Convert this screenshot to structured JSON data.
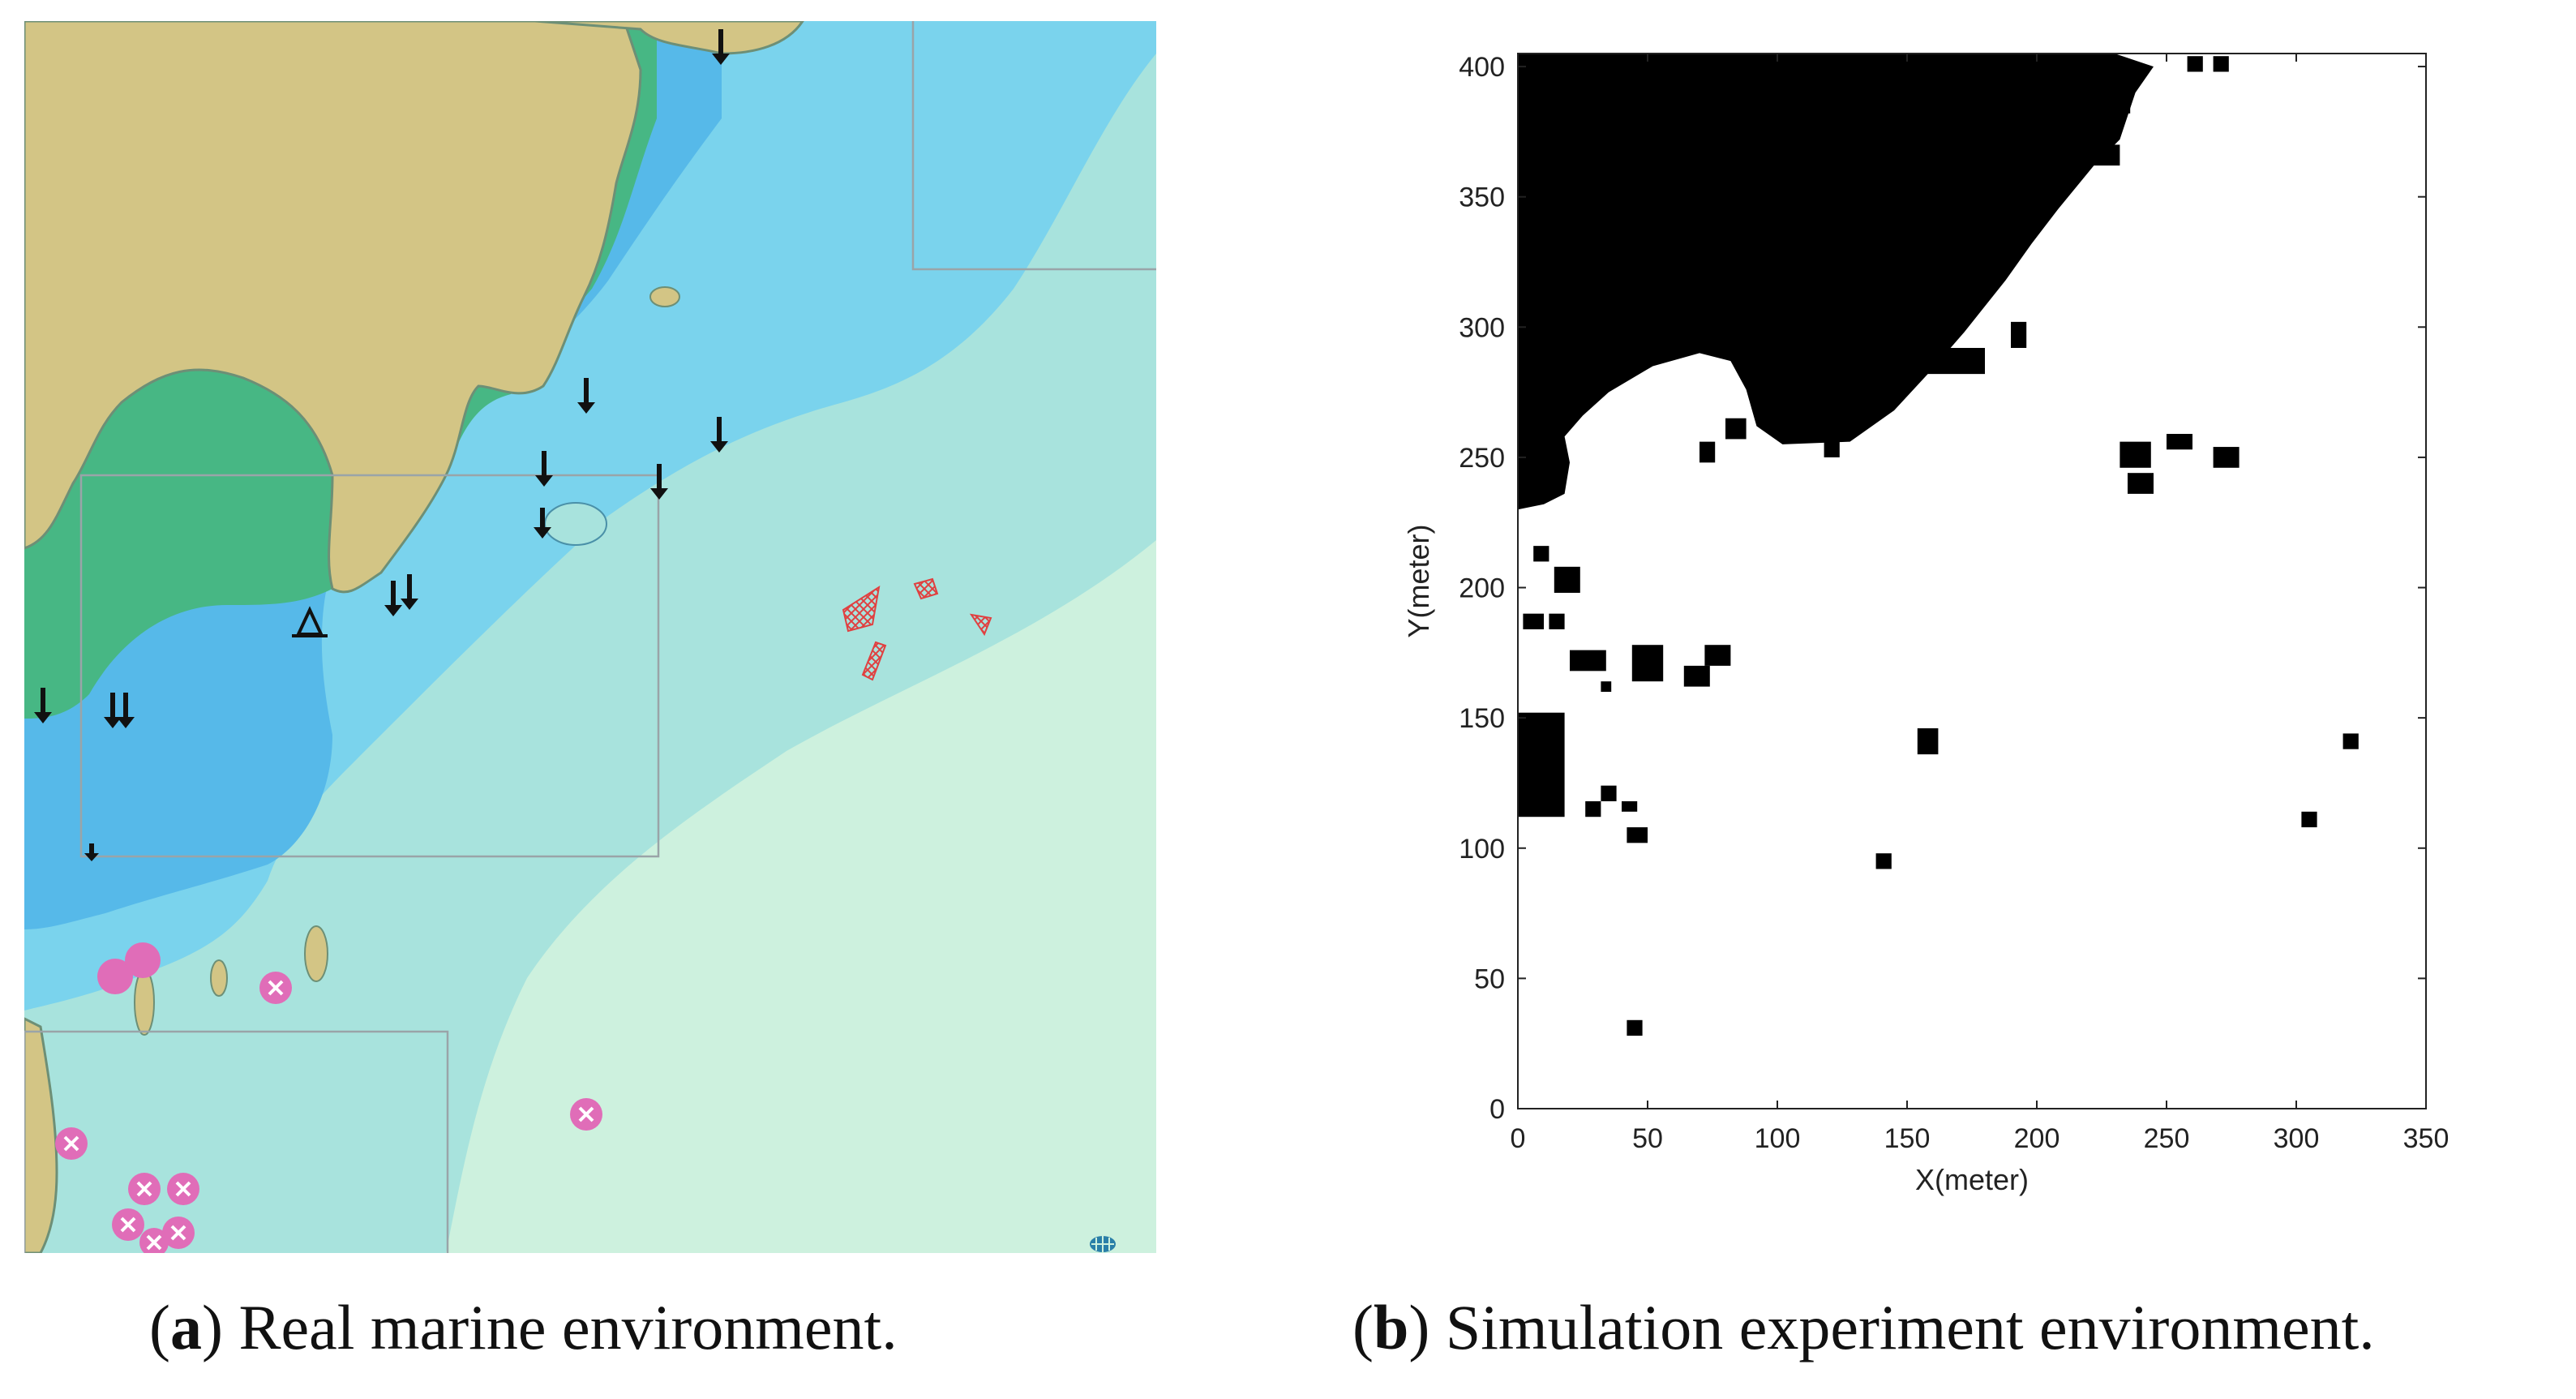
{
  "panel_a": {
    "caption_letter": "a",
    "caption_text": "Real marine environment.",
    "colors": {
      "land": "#d3c585",
      "intertidal": "#47b784",
      "shallow": "#56b9e9",
      "medium": "#7ad3ed",
      "deep": "#a8e3dd",
      "deepest": "#cdf1de",
      "restricted": "#e06db8",
      "fishing": "#e04040"
    },
    "icons": [
      "anchor-icon",
      "wreck-icon",
      "restricted-area-icon",
      "fishing-area-icon",
      "beacon-icon"
    ]
  },
  "panel_b": {
    "caption_letter": "b",
    "caption_text": "Simulation experiment environment.",
    "chart_data": {
      "type": "map",
      "title": "",
      "xlabel": "X(meter)",
      "ylabel": "Y(meter)",
      "xlim": [
        0,
        350
      ],
      "ylim": [
        0,
        405
      ],
      "xticks": [
        0,
        50,
        100,
        150,
        200,
        250,
        300,
        350
      ],
      "yticks": [
        0,
        50,
        100,
        150,
        200,
        250,
        300,
        350,
        400
      ],
      "grid": false,
      "obstacle_color": "#000000",
      "background_color": "#ffffff",
      "mainland_boundary": [
        [
          0,
          405
        ],
        [
          230,
          405
        ],
        [
          245,
          400
        ],
        [
          238,
          390
        ],
        [
          232,
          372
        ],
        [
          222,
          362
        ],
        [
          208,
          345
        ],
        [
          198,
          332
        ],
        [
          188,
          318
        ],
        [
          172,
          298
        ],
        [
          158,
          282
        ],
        [
          145,
          268
        ],
        [
          128,
          256
        ],
        [
          102,
          255
        ],
        [
          92,
          262
        ],
        [
          88,
          276
        ],
        [
          82,
          287
        ],
        [
          70,
          290
        ],
        [
          52,
          285
        ],
        [
          35,
          275
        ],
        [
          25,
          266
        ],
        [
          18,
          258
        ],
        [
          20,
          248
        ],
        [
          18,
          236
        ],
        [
          10,
          232
        ],
        [
          0,
          230
        ]
      ],
      "obstacles": [
        {
          "x": 258,
          "y": 398,
          "w": 6,
          "h": 6
        },
        {
          "x": 268,
          "y": 398,
          "w": 6,
          "h": 6
        },
        {
          "x": 230,
          "y": 382,
          "w": 6,
          "h": 6
        },
        {
          "x": 220,
          "y": 362,
          "w": 12,
          "h": 8
        },
        {
          "x": 175,
          "y": 325,
          "w": 12,
          "h": 6
        },
        {
          "x": 190,
          "y": 292,
          "w": 6,
          "h": 10
        },
        {
          "x": 150,
          "y": 282,
          "w": 30,
          "h": 10
        },
        {
          "x": 118,
          "y": 250,
          "w": 6,
          "h": 6
        },
        {
          "x": 80,
          "y": 257,
          "w": 8,
          "h": 8
        },
        {
          "x": 70,
          "y": 248,
          "w": 6,
          "h": 8
        },
        {
          "x": 232,
          "y": 246,
          "w": 12,
          "h": 10
        },
        {
          "x": 235,
          "y": 236,
          "w": 10,
          "h": 8
        },
        {
          "x": 250,
          "y": 253,
          "w": 10,
          "h": 6
        },
        {
          "x": 268,
          "y": 246,
          "w": 10,
          "h": 8
        },
        {
          "x": 6,
          "y": 210,
          "w": 6,
          "h": 6
        },
        {
          "x": 14,
          "y": 198,
          "w": 10,
          "h": 10
        },
        {
          "x": 2,
          "y": 184,
          "w": 8,
          "h": 6
        },
        {
          "x": 12,
          "y": 184,
          "w": 6,
          "h": 6
        },
        {
          "x": 20,
          "y": 168,
          "w": 14,
          "h": 8
        },
        {
          "x": 32,
          "y": 160,
          "w": 4,
          "h": 4
        },
        {
          "x": 44,
          "y": 164,
          "w": 12,
          "h": 14
        },
        {
          "x": 64,
          "y": 162,
          "w": 10,
          "h": 8
        },
        {
          "x": 72,
          "y": 170,
          "w": 10,
          "h": 8
        },
        {
          "x": 0,
          "y": 112,
          "w": 18,
          "h": 40
        },
        {
          "x": 26,
          "y": 112,
          "w": 6,
          "h": 6
        },
        {
          "x": 32,
          "y": 118,
          "w": 6,
          "h": 6
        },
        {
          "x": 40,
          "y": 114,
          "w": 6,
          "h": 4
        },
        {
          "x": 42,
          "y": 102,
          "w": 8,
          "h": 6
        },
        {
          "x": 154,
          "y": 136,
          "w": 8,
          "h": 10
        },
        {
          "x": 138,
          "y": 92,
          "w": 6,
          "h": 6
        },
        {
          "x": 318,
          "y": 138,
          "w": 6,
          "h": 6
        },
        {
          "x": 302,
          "y": 108,
          "w": 6,
          "h": 6
        },
        {
          "x": 42,
          "y": 28,
          "w": 6,
          "h": 6
        }
      ]
    }
  }
}
